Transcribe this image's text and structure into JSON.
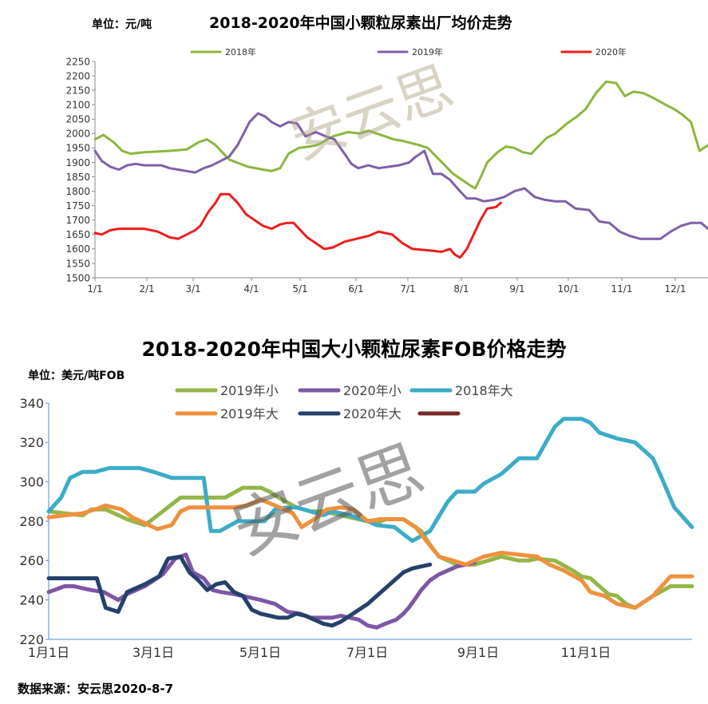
{
  "chart_data": [
    {
      "type": "line",
      "title": "2018-2020年中国小颗粒尿素出厂均价走势",
      "unit_label": "单位：元/吨",
      "x_ticks": [
        "1/1",
        "2/1",
        "3/1",
        "4/1",
        "5/1",
        "6/1",
        "7/1",
        "8/1",
        "9/1",
        "10/1",
        "11/1",
        "12/1"
      ],
      "xlim": [
        1,
        362
      ],
      "ylim": [
        1500,
        2250
      ],
      "y_ticks": [
        1500,
        1550,
        1600,
        1650,
        1700,
        1750,
        1800,
        1850,
        1900,
        1950,
        2000,
        2050,
        2100,
        2150,
        2200,
        2250
      ],
      "grid": false,
      "legend_position": "top",
      "series": [
        {
          "name": "2018年",
          "color": "#8cb63c",
          "x": [
            1,
            6,
            12,
            17,
            22,
            30,
            45,
            55,
            62,
            67,
            72,
            80,
            91,
            100,
            105,
            110,
            115,
            121,
            127,
            132,
            141,
            150,
            157,
            162,
            172,
            177,
            182,
            192,
            197,
            202,
            212,
            222,
            225,
            229,
            232,
            238,
            243,
            248,
            253,
            258,
            262,
            267,
            272,
            279,
            285,
            290,
            296,
            302,
            308,
            313,
            318,
            324,
            331,
            337,
            342,
            347,
            352,
            357,
            362
          ],
          "y": [
            1980,
            1995,
            1970,
            1940,
            1930,
            1935,
            1940,
            1945,
            1970,
            1980,
            1960,
            1910,
            1885,
            1875,
            1870,
            1880,
            1930,
            1950,
            1955,
            1960,
            1990,
            2005,
            2000,
            2010,
            1990,
            1980,
            1975,
            1960,
            1950,
            1920,
            1860,
            1820,
            1810,
            1860,
            1900,
            1935,
            1955,
            1950,
            1935,
            1930,
            1955,
            1985,
            2000,
            2035,
            2060,
            2085,
            2140,
            2180,
            2175,
            2130,
            2145,
            2140,
            2120,
            2100,
            2085,
            2065,
            2040,
            1940,
            1960
          ]
        },
        {
          "name": "2019年",
          "color": "#7f5fa8",
          "x": [
            1,
            5,
            10,
            15,
            20,
            25,
            30,
            40,
            45,
            50,
            55,
            60,
            65,
            70,
            75,
            80,
            85,
            92,
            97,
            101,
            105,
            110,
            115,
            120,
            125,
            131,
            137,
            142,
            148,
            152,
            156,
            162,
            168,
            174,
            180,
            186,
            190,
            195,
            200,
            205,
            210,
            216,
            220,
            225,
            230,
            236,
            242,
            248,
            254,
            260,
            266,
            272,
            278,
            284,
            292,
            298,
            304,
            310,
            316,
            322,
            328,
            334,
            340,
            346,
            352,
            358,
            362
          ],
          "y": [
            1940,
            1905,
            1885,
            1875,
            1890,
            1895,
            1890,
            1890,
            1880,
            1875,
            1870,
            1865,
            1880,
            1890,
            1905,
            1920,
            1960,
            2040,
            2070,
            2060,
            2040,
            2025,
            2040,
            2035,
            1990,
            2005,
            1990,
            1980,
            1930,
            1895,
            1880,
            1890,
            1880,
            1885,
            1890,
            1900,
            1920,
            1940,
            1860,
            1860,
            1840,
            1800,
            1775,
            1775,
            1765,
            1770,
            1780,
            1800,
            1810,
            1780,
            1770,
            1765,
            1765,
            1740,
            1735,
            1695,
            1690,
            1660,
            1645,
            1635,
            1635,
            1635,
            1660,
            1680,
            1690,
            1690,
            1670
          ]
        },
        {
          "name": "2020年",
          "color": "#ee1c1c",
          "x": [
            1,
            5,
            10,
            15,
            22,
            30,
            38,
            45,
            50,
            55,
            60,
            63,
            68,
            72,
            75,
            80,
            85,
            90,
            100,
            105,
            110,
            114,
            118,
            126,
            131,
            136,
            141,
            148,
            155,
            162,
            168,
            172,
            176,
            182,
            188,
            198,
            205,
            210,
            213,
            216,
            220,
            224,
            228,
            232,
            237,
            240
          ],
          "y": [
            1655,
            1650,
            1665,
            1670,
            1670,
            1670,
            1660,
            1640,
            1635,
            1650,
            1665,
            1680,
            1730,
            1760,
            1790,
            1790,
            1760,
            1720,
            1680,
            1670,
            1685,
            1690,
            1690,
            1640,
            1620,
            1600,
            1605,
            1625,
            1635,
            1645,
            1660,
            1655,
            1650,
            1620,
            1600,
            1595,
            1590,
            1600,
            1580,
            1570,
            1600,
            1650,
            1700,
            1740,
            1745,
            1760
          ]
        }
      ]
    },
    {
      "type": "line",
      "title": "2018-2020年中国大小颗粒尿素FOB价格走势",
      "unit_label": "单位：美元/吨FOB",
      "x_ticks": [
        "1月1日",
        "3月1日",
        "5月1日",
        "7月1日",
        "9月1日",
        "11月1日"
      ],
      "xlim": [
        1,
        362
      ],
      "ylim": [
        220,
        340
      ],
      "y_ticks": [
        220,
        240,
        260,
        280,
        300,
        320,
        340
      ],
      "grid": false,
      "legend_position": "top",
      "series": [
        {
          "name": "2019年小",
          "color": "#93b648",
          "x": [
            1,
            10,
            20,
            25,
            33,
            45,
            55,
            65,
            75,
            80,
            90,
            100,
            110,
            115,
            120,
            125,
            130,
            140,
            148,
            155,
            160,
            165,
            170,
            175,
            185,
            190,
            200,
            210,
            215,
            220,
            225,
            230,
            240,
            255,
            265,
            270,
            275,
            285,
            295,
            300,
            305,
            315,
            320,
            325,
            330,
            340,
            350,
            362
          ],
          "y": [
            285,
            284,
            283,
            286,
            286,
            281,
            278,
            285,
            292,
            292,
            292,
            292,
            297,
            297,
            297,
            295,
            292,
            287,
            285,
            285,
            284,
            283,
            282,
            281,
            279,
            281,
            281,
            275,
            268,
            262,
            260,
            258,
            258,
            262,
            260,
            260,
            261,
            260,
            255,
            252,
            251,
            243,
            242,
            238,
            236,
            242,
            247,
            247
          ]
        },
        {
          "name": "2020年小",
          "color": "#7e56a5",
          "x": [
            1,
            10,
            15,
            20,
            25,
            32,
            40,
            45,
            55,
            65,
            72,
            78,
            82,
            88,
            93,
            98,
            105,
            110,
            120,
            128,
            135,
            142,
            148,
            155,
            160,
            165,
            170,
            175,
            180,
            185,
            190,
            196,
            200,
            203,
            207,
            210,
            215,
            220,
            225,
            230,
            235,
            240
          ],
          "y": [
            244,
            247,
            247,
            246,
            245,
            244,
            240,
            243,
            247,
            253,
            261,
            263,
            254,
            251,
            245,
            244,
            243,
            242,
            240,
            238,
            234,
            233,
            231,
            231,
            231,
            232,
            231,
            230,
            227,
            226,
            228,
            230,
            233,
            236,
            241,
            245,
            250,
            253,
            255,
            257,
            258,
            259
          ]
        },
        {
          "name": "2018年大",
          "color": "#3cabc8",
          "x": [
            1,
            8,
            13,
            20,
            27,
            35,
            45,
            52,
            60,
            70,
            80,
            88,
            92,
            97,
            107,
            115,
            122,
            128,
            135,
            140,
            148,
            155,
            160,
            170,
            180,
            185,
            195,
            205,
            215,
            225,
            230,
            240,
            245,
            255,
            265,
            275,
            280,
            285,
            290,
            300,
            305,
            310,
            320,
            330,
            340,
            345,
            352,
            362
          ],
          "y": [
            285,
            292,
            302,
            305,
            305,
            307,
            307,
            307,
            305,
            302,
            302,
            302,
            275,
            275,
            280,
            280,
            280,
            286,
            287,
            287,
            285,
            283,
            285,
            283,
            280,
            278,
            277,
            270,
            275,
            290,
            295,
            295,
            299,
            304,
            312,
            312,
            320,
            328,
            332,
            332,
            330,
            325,
            322,
            320,
            312,
            302,
            287,
            277
          ]
        },
        {
          "name": "2019年大",
          "color": "#f0903d",
          "x": [
            1,
            10,
            20,
            27,
            33,
            42,
            48,
            55,
            62,
            70,
            75,
            80,
            90,
            98,
            105,
            112,
            120,
            128,
            138,
            143,
            150,
            157,
            165,
            172,
            180,
            187,
            193,
            200,
            207,
            213,
            220,
            228,
            235,
            245,
            255,
            265,
            275,
            282,
            290,
            296,
            300,
            305,
            313,
            320,
            330,
            340,
            350,
            362
          ],
          "y": [
            282,
            283,
            284,
            286,
            288,
            286,
            282,
            279,
            276,
            278,
            285,
            287,
            287,
            287,
            287,
            288,
            291,
            288,
            284,
            277,
            281,
            286,
            287,
            286,
            280,
            281,
            281,
            281,
            277,
            270,
            262,
            260,
            258,
            262,
            264,
            263,
            262,
            258,
            255,
            252,
            250,
            244,
            242,
            238,
            236,
            242,
            252,
            252
          ]
        },
        {
          "name": "2020年大",
          "color": "#24416b",
          "x": [
            1,
            10,
            20,
            28,
            33,
            40,
            45,
            55,
            63,
            68,
            75,
            80,
            85,
            90,
            95,
            100,
            105,
            110,
            115,
            120,
            130,
            135,
            140,
            145,
            150,
            155,
            160,
            165,
            170,
            175,
            180,
            185,
            190,
            195,
            200,
            205,
            210,
            215
          ],
          "y": [
            251,
            251,
            251,
            251,
            236,
            234,
            244,
            248,
            252,
            261,
            262,
            254,
            250,
            245,
            248,
            249,
            244,
            242,
            235,
            233,
            231,
            231,
            233,
            232,
            230,
            228,
            227,
            229,
            232,
            235,
            238,
            242,
            246,
            250,
            254,
            256,
            257,
            258
          ]
        },
        {
          "name": "",
          "color": "#7a2a2a",
          "x": [],
          "y": []
        }
      ]
    }
  ],
  "watermark_text": "安云思",
  "source_note": "数据来源：安云思2020-8-7"
}
